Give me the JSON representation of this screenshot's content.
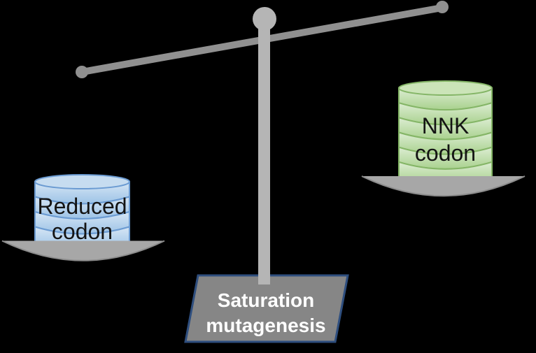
{
  "diagram": {
    "background_color": "#000000",
    "balance": {
      "beam_color": "#909090",
      "pivot_color": "#b5b5b5",
      "post_color": "#b5b5b5",
      "pan_color": "#a7a7a7",
      "pan_edge_color": "#8c8c8c"
    },
    "left_weight": {
      "label_lines": [
        "Reduced",
        "codon"
      ],
      "disk_count": 4,
      "fill_color": "#9dc3e6",
      "fill_light_color": "#d6e6f5",
      "top_color": "#c6dcf0",
      "border_color": "#6b9bd2",
      "text_color": "#141414"
    },
    "right_weight": {
      "label_lines": [
        "NNK",
        "codon"
      ],
      "disk_count": 6,
      "fill_color": "#a9d18e",
      "fill_light_color": "#dcedd2",
      "top_color": "#cbe4b8",
      "border_color": "#84b566",
      "text_color": "#141414"
    },
    "base": {
      "label_lines": [
        "Saturation",
        "mutagenesis"
      ],
      "fill_color": "#868686",
      "border_color": "#2e4e7e",
      "text_color": "#ffffff"
    }
  }
}
